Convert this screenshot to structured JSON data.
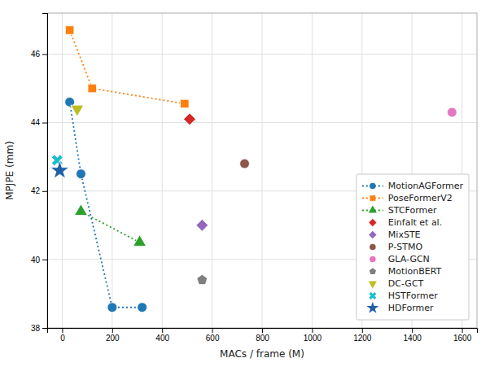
{
  "chart_data": {
    "type": "line",
    "xlabel": "MACs / frame (M)",
    "ylabel": "MPJPE (mm)",
    "xlim": [
      -60,
      1660
    ],
    "ylim": [
      38.0,
      47.2
    ],
    "xticks": [
      0,
      200,
      400,
      600,
      800,
      1000,
      1200,
      1400,
      1600
    ],
    "yticks": [
      38,
      40,
      42,
      44,
      46
    ],
    "grid": true,
    "legend": "lower right",
    "series": [
      {
        "name": "MotionAGFormer",
        "type": "line",
        "line_style": "dotted",
        "marker": "circle",
        "color": "#1f77b4",
        "x": [
          30,
          75,
          200,
          320
        ],
        "values": [
          44.6,
          42.5,
          38.6,
          38.6
        ]
      },
      {
        "name": "PoseFormerV2",
        "type": "line",
        "line_style": "dotted",
        "marker": "square",
        "color": "#ff7f0e",
        "x": [
          30,
          120,
          490
        ],
        "values": [
          46.7,
          45.0,
          44.55
        ]
      },
      {
        "name": "STCFormer",
        "type": "line",
        "line_style": "dotted",
        "marker": "triangle-up",
        "color": "#2ca02c",
        "x": [
          75,
          310
        ],
        "values": [
          41.4,
          40.5
        ]
      },
      {
        "name": "Einfalt et al.",
        "type": "scatter",
        "marker": "diamond",
        "color": "#d62728",
        "x": [
          510
        ],
        "values": [
          44.1
        ]
      },
      {
        "name": "MixSTE",
        "type": "scatter",
        "marker": "diamond",
        "color": "#9467bd",
        "x": [
          560
        ],
        "values": [
          41.0
        ]
      },
      {
        "name": "P-STMO",
        "type": "scatter",
        "marker": "circle",
        "color": "#8c564b",
        "x": [
          730
        ],
        "values": [
          42.8
        ]
      },
      {
        "name": "GLA-GCN",
        "type": "scatter",
        "marker": "circle",
        "color": "#e377c2",
        "x": [
          1560
        ],
        "values": [
          44.3
        ]
      },
      {
        "name": "MotionBERT",
        "type": "scatter",
        "marker": "pentagon",
        "color": "#7f7f7f",
        "x": [
          560
        ],
        "values": [
          39.4
        ]
      },
      {
        "name": "DC-GCT",
        "type": "scatter",
        "marker": "triangle-down",
        "color": "#bcbd22",
        "x": [
          60
        ],
        "values": [
          44.4
        ]
      },
      {
        "name": "HSTFormer",
        "type": "scatter",
        "marker": "x",
        "color": "#17becf",
        "x": [
          -20
        ],
        "values": [
          42.9
        ]
      },
      {
        "name": "HDFormer",
        "type": "scatter",
        "marker": "star",
        "color": "#1f5fa6",
        "x": [
          -10
        ],
        "values": [
          42.6
        ]
      }
    ]
  }
}
